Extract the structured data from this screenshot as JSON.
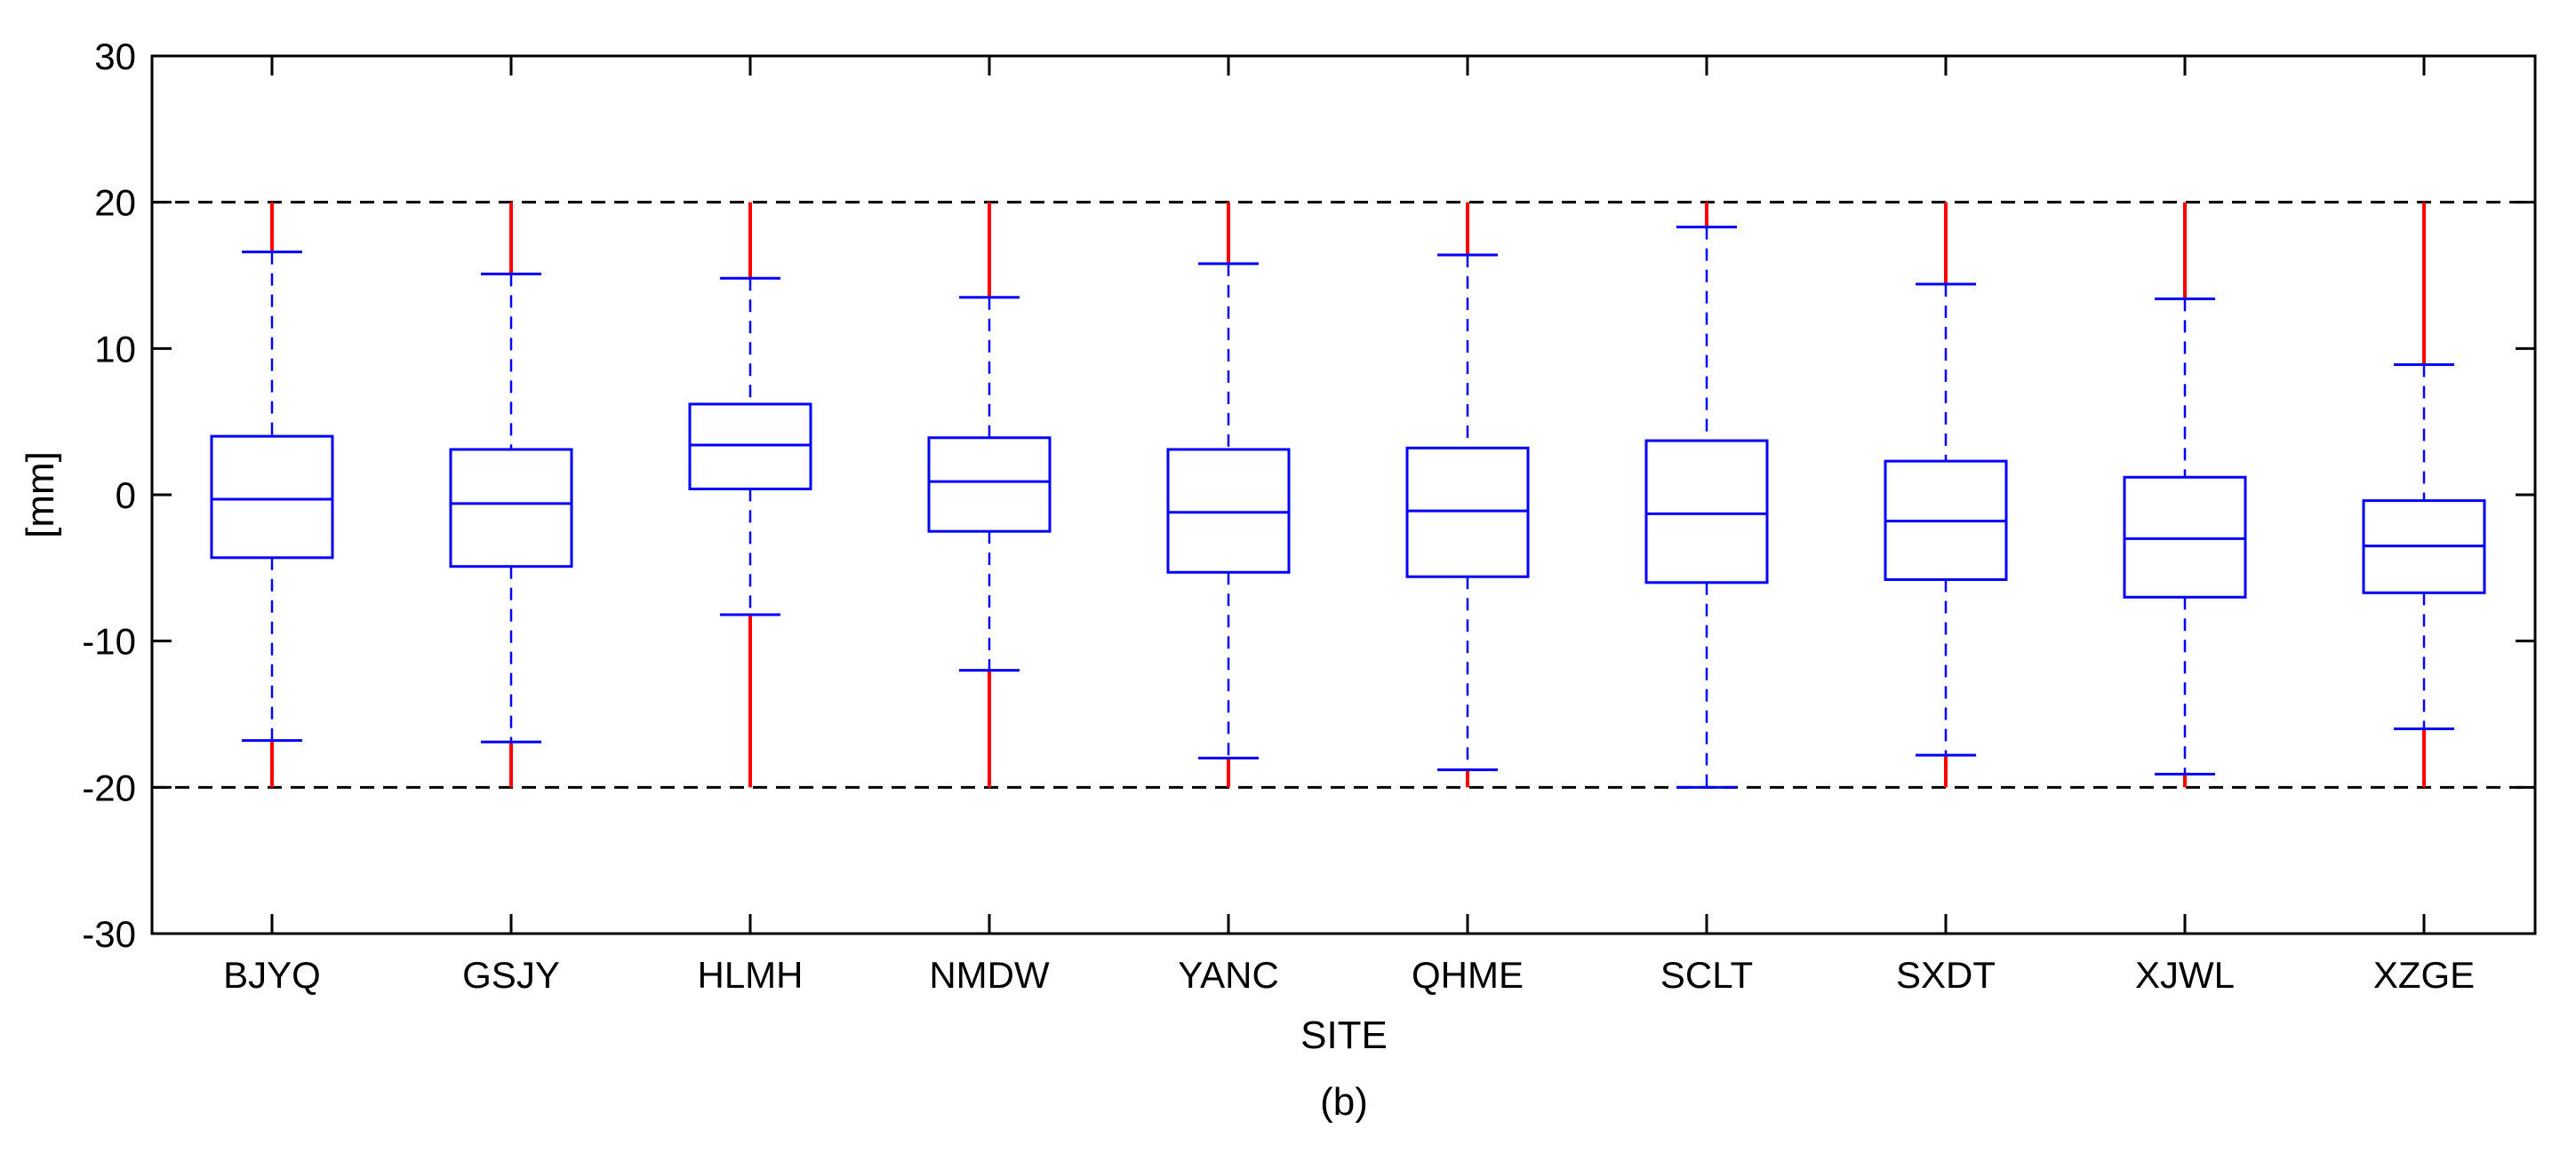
{
  "chart_data": {
    "type": "boxplot",
    "xlabel": "SITE",
    "ylabel": "[mm]",
    "caption": "(b)",
    "ylim": [
      -30,
      30
    ],
    "yticks": [
      30,
      20,
      10,
      0,
      -10,
      -20,
      -30
    ],
    "ytick_labels": [
      "30",
      "20",
      "10",
      "0",
      "-10",
      "-20",
      "-30"
    ],
    "threshold_lines": [
      20,
      -20
    ],
    "outlier_range": [
      -20,
      20
    ],
    "categories": [
      "BJYQ",
      "GSJY",
      "HLMH",
      "NMDW",
      "YANC",
      "QHME",
      "SCLT",
      "SXDT",
      "XJWL",
      "XZGE"
    ],
    "boxes": [
      {
        "site": "BJYQ",
        "whisker_low": -16.8,
        "q1": -4.3,
        "median": -0.3,
        "q3": 4.0,
        "whisker_high": 16.6
      },
      {
        "site": "GSJY",
        "whisker_low": -16.9,
        "q1": -4.9,
        "median": -0.6,
        "q3": 3.1,
        "whisker_high": 15.1
      },
      {
        "site": "HLMH",
        "whisker_low": -8.2,
        "q1": 0.4,
        "median": 3.4,
        "q3": 6.2,
        "whisker_high": 14.8
      },
      {
        "site": "NMDW",
        "whisker_low": -12.0,
        "q1": -2.5,
        "median": 0.9,
        "q3": 3.9,
        "whisker_high": 13.5
      },
      {
        "site": "YANC",
        "whisker_low": -18.0,
        "q1": -5.3,
        "median": -1.2,
        "q3": 3.1,
        "whisker_high": 15.8
      },
      {
        "site": "QHME",
        "whisker_low": -18.8,
        "q1": -5.6,
        "median": -1.1,
        "q3": 3.2,
        "whisker_high": 16.4
      },
      {
        "site": "SCLT",
        "whisker_low": -20.0,
        "q1": -6.0,
        "median": -1.3,
        "q3": 3.7,
        "whisker_high": 18.3
      },
      {
        "site": "SXDT",
        "whisker_low": -17.8,
        "q1": -5.8,
        "median": -1.8,
        "q3": 2.3,
        "whisker_high": 14.4
      },
      {
        "site": "XJWL",
        "whisker_low": -19.1,
        "q1": -7.0,
        "median": -3.0,
        "q3": 1.2,
        "whisker_high": 13.4
      },
      {
        "site": "XZGE",
        "whisker_low": -16.0,
        "q1": -6.7,
        "median": -3.5,
        "q3": -0.4,
        "whisker_high": 8.9
      }
    ],
    "colors": {
      "box": "#0000ff",
      "outliers": "#ff0000",
      "threshold": "#000000",
      "axes": "#000000"
    }
  }
}
